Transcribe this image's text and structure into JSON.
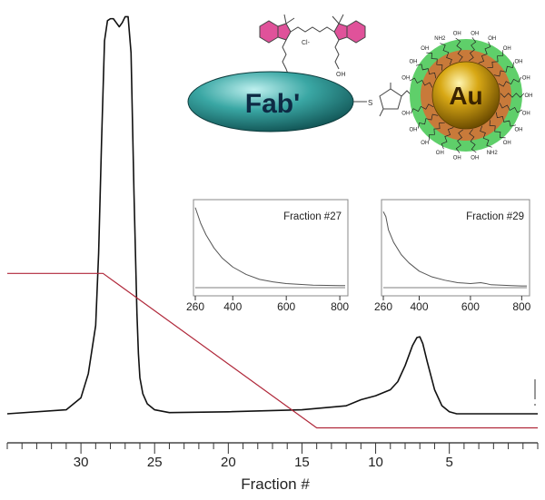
{
  "chart_data": [
    {
      "type": "line",
      "title": "",
      "xlabel": "Fraction #",
      "ylabel": "",
      "xlim": [
        -1,
        35
      ],
      "x_ticks": [
        30,
        25,
        20,
        15,
        10,
        5
      ],
      "x_reversed": true,
      "grid": false,
      "series": [
        {
          "color": "#111111",
          "x": [
            35,
            31,
            30,
            29.5,
            29,
            28.8,
            28.6,
            28.4,
            28.2,
            28.0,
            27.8,
            27.6,
            27.4,
            27.2,
            27.0,
            26.8,
            26.6,
            26.4,
            26.2,
            26.1,
            26.0,
            25.8,
            25.5,
            25.0,
            24.0,
            20,
            15,
            12,
            11,
            10,
            9,
            8.5,
            8.0,
            7.5,
            7.2,
            7.0,
            6.8,
            6.5,
            6.0,
            5.5,
            5.0,
            4.5,
            -1
          ],
          "y": [
            0.0,
            0.01,
            0.04,
            0.1,
            0.22,
            0.4,
            0.68,
            0.93,
            0.98,
            0.985,
            0.985,
            0.975,
            0.965,
            0.975,
            0.99,
            0.99,
            0.9,
            0.55,
            0.25,
            0.15,
            0.09,
            0.05,
            0.025,
            0.01,
            0.003,
            0.005,
            0.01,
            0.02,
            0.035,
            0.045,
            0.06,
            0.08,
            0.12,
            0.17,
            0.19,
            0.192,
            0.175,
            0.13,
            0.06,
            0.02,
            0.005,
            0.0,
            0.0
          ]
        },
        {
          "color": "#b0283a",
          "x": [
            35,
            28.5,
            14.0,
            -1
          ],
          "y": [
            0.35,
            0.35,
            -0.035,
            -0.035
          ]
        }
      ]
    },
    {
      "type": "line",
      "title": "Fraction #27",
      "xlabel": "",
      "ylabel": "",
      "xlim": [
        260,
        820
      ],
      "x_ticks": [
        260,
        400,
        600,
        800
      ],
      "grid": false,
      "series": [
        {
          "color": "#555555",
          "x": [
            260,
            280,
            300,
            330,
            360,
            400,
            450,
            500,
            550,
            600,
            650,
            700,
            750,
            800,
            820
          ],
          "y": [
            0.97,
            0.78,
            0.64,
            0.48,
            0.36,
            0.25,
            0.16,
            0.1,
            0.07,
            0.05,
            0.04,
            0.03,
            0.028,
            0.025,
            0.025
          ]
        },
        {
          "color": "#555555",
          "x": [
            260,
            820
          ],
          "y": [
            0.0,
            0.0
          ]
        }
      ]
    },
    {
      "type": "line",
      "title": "Fraction #29",
      "xlabel": "",
      "ylabel": "",
      "xlim": [
        260,
        820
      ],
      "x_ticks": [
        260,
        400,
        600,
        800
      ],
      "grid": false,
      "series": [
        {
          "color": "#555555",
          "x": [
            260,
            270,
            280,
            300,
            330,
            360,
            400,
            450,
            500,
            550,
            600,
            640,
            660,
            680,
            720,
            760,
            800,
            820
          ],
          "y": [
            0.92,
            0.86,
            0.7,
            0.55,
            0.4,
            0.3,
            0.2,
            0.13,
            0.09,
            0.06,
            0.05,
            0.06,
            0.05,
            0.035,
            0.03,
            0.025,
            0.02,
            0.02
          ]
        },
        {
          "color": "#555555",
          "x": [
            260,
            820
          ],
          "y": [
            0.0,
            0.0
          ]
        }
      ]
    }
  ],
  "illustration": {
    "fab_label": "Fab'",
    "au_label": "Au",
    "fab_color": "#3aa7a4",
    "au_color": "#c99a10",
    "shell_colors": [
      "#5fcf6a",
      "#c87a3a"
    ],
    "chem_labels": {
      "hydroxyl": "OH",
      "amine": "NH2",
      "thiol": "S",
      "counter_ion": "Cl-"
    }
  }
}
